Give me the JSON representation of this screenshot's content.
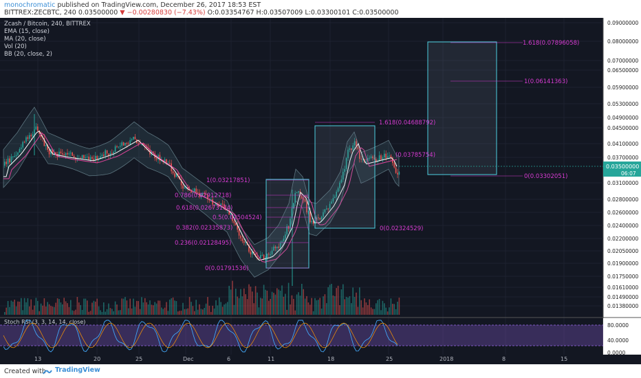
{
  "header": {
    "author": "monochromatic",
    "published": "published on TradingView.com, December 26, 2017 18:53 EST",
    "symbol": "BITTREX:ZECBTC, 240",
    "price": "0.03500000",
    "change": "−0.00280830 (−7.43%)",
    "ohlc": "O:0.03354767 H:0.03507009 L:0.03300101 C:0.03500000"
  },
  "legend": {
    "title": "Zcash / Bitcoin, 240, BITTREX",
    "items": [
      "EMA (15, close)",
      "MA (20, close)",
      "Vol (20)",
      "BB (20, close, 2)"
    ]
  },
  "stoch": {
    "label": "Stoch RSI (3, 3, 14, 14, close)",
    "ticks": [
      "80.0000",
      "40.0000",
      "0.0000"
    ]
  },
  "price_axis": [
    "0.09000000",
    "0.08000000",
    "0.07000000",
    "0.06500000",
    "0.05900000",
    "0.05300000",
    "0.04900000",
    "0.04500000",
    "0.04100000",
    "0.03700000",
    "0.03500000",
    "0.03100000",
    "0.02800000",
    "0.02600000",
    "0.02400000",
    "0.02200000",
    "0.02050000",
    "0.01900000",
    "0.01750000",
    "0.01610000",
    "0.01490000",
    "0.01380000"
  ],
  "current_price": {
    "value": "0.03500000",
    "countdown": "06:07",
    "color": "#26a69a"
  },
  "time_axis": [
    "13",
    "20",
    "25",
    "Dec",
    "6",
    "11",
    "18",
    "25",
    "2018",
    "8",
    "15"
  ],
  "fib_left": [
    "1(0.03217851)",
    "0.786(0.02912718)",
    "0.618(0.02673174)",
    "0.5(0.02504524)",
    "0.382(0.02335873)",
    "0.236(0.02128495)",
    "0(0.01791536)"
  ],
  "fib_mid": [
    "1.618(0.04688792)",
    "0(0.02324529)"
  ],
  "fib_right": [
    "1.618(0.07896058)",
    "1(0.06141363)",
    "0(0.03302051)"
  ],
  "fib_misc": "(0.03785754)",
  "footer": {
    "created": "Created with",
    "brand": "TradingView"
  },
  "colors": {
    "fib": "#d63bd1",
    "box": "#4dd0e1",
    "up": "#26a69a",
    "down": "#ef5350"
  }
}
